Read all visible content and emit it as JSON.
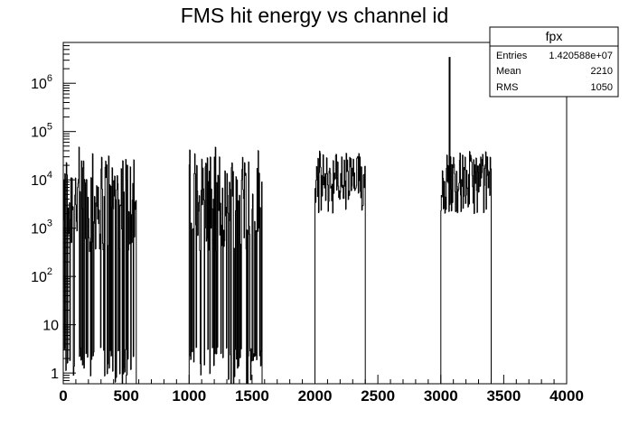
{
  "chart_data": {
    "type": "bar",
    "title": "FMS hit energy vs channel id",
    "xlabel": "",
    "ylabel": "",
    "xlim": [
      0,
      4000
    ],
    "ylim": [
      0.6,
      7000000
    ],
    "y_scale": "log",
    "grid": false,
    "x_ticks": [
      {
        "value": 0,
        "label": "0"
      },
      {
        "value": 500,
        "label": "500"
      },
      {
        "value": 1000,
        "label": "1000"
      },
      {
        "value": 1500,
        "label": "1500"
      },
      {
        "value": 2000,
        "label": "2000"
      },
      {
        "value": 2500,
        "label": "2500"
      },
      {
        "value": 3000,
        "label": "3000"
      },
      {
        "value": 3500,
        "label": "3500"
      },
      {
        "value": 4000,
        "label": "4000"
      }
    ],
    "y_ticks": [
      {
        "value": 1,
        "base": "1",
        "exp": ""
      },
      {
        "value": 10,
        "base": "10",
        "exp": ""
      },
      {
        "value": 100,
        "base": "10",
        "exp": "2"
      },
      {
        "value": 1000,
        "base": "10",
        "exp": "3"
      },
      {
        "value": 10000,
        "base": "10",
        "exp": "4"
      },
      {
        "value": 100000,
        "base": "10",
        "exp": "5"
      },
      {
        "value": 1000000,
        "base": "10",
        "exp": "6"
      }
    ],
    "bin_width": 4,
    "bands": [
      {
        "x_start": 0,
        "x_end": 580,
        "peak": 30000,
        "min": 0.5
      },
      {
        "x_start": 1000,
        "x_end": 1580,
        "peak": 30000,
        "min": 0.5
      },
      {
        "x_start": 2000,
        "x_end": 2400,
        "peak": 30000,
        "min": 1500
      },
      {
        "x_start": 3000,
        "x_end": 3400,
        "peak": 30000,
        "min": 1500
      }
    ],
    "spike": {
      "x": 3070,
      "value": 3500000
    },
    "stats": {
      "name": "fpx",
      "rows": [
        {
          "label": "Entries",
          "value": "1.420588e+07"
        },
        {
          "label": "Mean",
          "value": "2210"
        },
        {
          "label": "RMS",
          "value": "1050"
        }
      ]
    }
  }
}
